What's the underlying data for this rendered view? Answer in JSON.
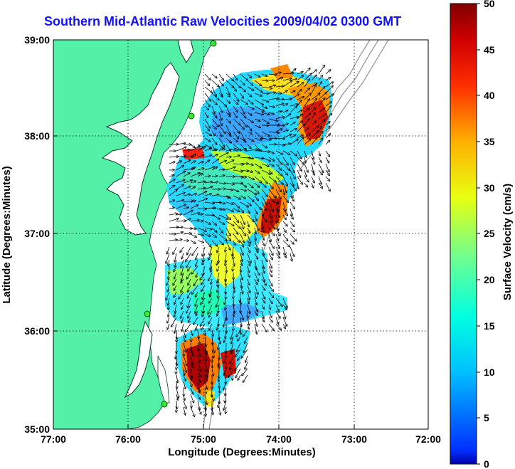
{
  "title": "Southern Mid-Atlantic Raw Velocities 2009/04/02 0300 GMT",
  "x_axis": {
    "label": "Longitude (Degrees:Minutes)",
    "ticks": [
      "77:00",
      "76:00",
      "75:00",
      "74:00",
      "73:00",
      "72:00"
    ],
    "range": [
      -77,
      -72
    ]
  },
  "y_axis": {
    "label": "Latitude (Degrees:Minutes)",
    "ticks": [
      "39:00",
      "38:00",
      "37:00",
      "36:00",
      "35:00"
    ],
    "range": [
      35,
      39
    ]
  },
  "colorbar": {
    "label": "Surface Velocity (cm/s)",
    "ticks": [
      "50",
      "45",
      "40",
      "35",
      "30",
      "25",
      "20",
      "15",
      "10",
      "5",
      "0"
    ],
    "range": [
      0,
      50
    ]
  },
  "colors": {
    "land": "#55f0a8",
    "water": "#ffffff",
    "title": "#1010ff"
  },
  "map": {
    "grid": "dotted",
    "features": [
      "coastline",
      "bathymetry-contours",
      "velocity-field",
      "velocity-vectors",
      "station-markers"
    ]
  }
}
